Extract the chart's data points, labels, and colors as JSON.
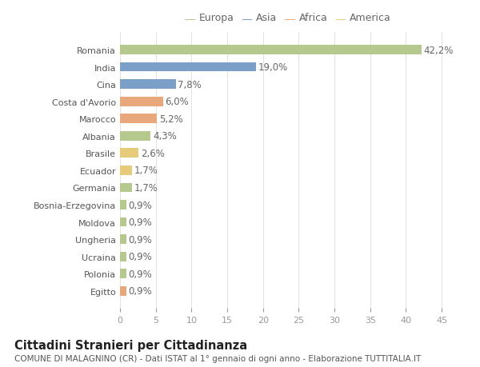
{
  "countries": [
    "Romania",
    "India",
    "Cina",
    "Costa d'Avorio",
    "Marocco",
    "Albania",
    "Brasile",
    "Ecuador",
    "Germania",
    "Bosnia-Erzegovina",
    "Moldova",
    "Ungheria",
    "Ucraina",
    "Polonia",
    "Egitto"
  ],
  "values": [
    42.2,
    19.0,
    7.8,
    6.0,
    5.2,
    4.3,
    2.6,
    1.7,
    1.7,
    0.9,
    0.9,
    0.9,
    0.9,
    0.9,
    0.9
  ],
  "labels": [
    "42,2%",
    "19,0%",
    "7,8%",
    "6,0%",
    "5,2%",
    "4,3%",
    "2,6%",
    "1,7%",
    "1,7%",
    "0,9%",
    "0,9%",
    "0,9%",
    "0,9%",
    "0,9%",
    "0,9%"
  ],
  "continents": [
    "Europa",
    "Asia",
    "Asia",
    "Africa",
    "Africa",
    "Europa",
    "America",
    "America",
    "Europa",
    "Europa",
    "Europa",
    "Europa",
    "Europa",
    "Europa",
    "Africa"
  ],
  "continent_colors": {
    "Europa": "#b5c98e",
    "Asia": "#7b9fc7",
    "Africa": "#e8a87c",
    "America": "#e8cb78"
  },
  "legend_order": [
    "Europa",
    "Asia",
    "Africa",
    "America"
  ],
  "background_color": "#ffffff",
  "plot_bg_color": "#ffffff",
  "title": "Cittadini Stranieri per Cittadinanza",
  "subtitle": "COMUNE DI MALAGNINO (CR) - Dati ISTAT al 1° gennaio di ogni anno - Elaborazione TUTTITALIA.IT",
  "xlim": [
    0,
    47
  ],
  "xticks": [
    0,
    5,
    10,
    15,
    20,
    25,
    30,
    35,
    40,
    45
  ],
  "bar_height": 0.55,
  "label_fontsize": 8.5,
  "ytick_fontsize": 8,
  "xtick_fontsize": 8,
  "title_fontsize": 10.5,
  "subtitle_fontsize": 7.5,
  "legend_fontsize": 9
}
